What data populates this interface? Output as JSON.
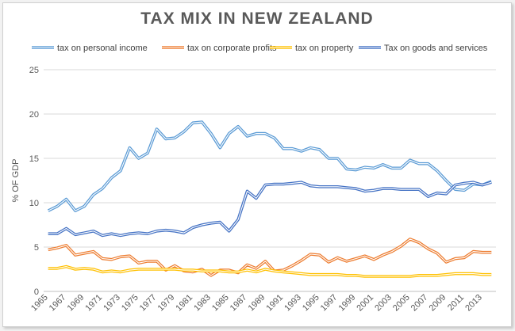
{
  "chart_data": {
    "type": "line",
    "title": "TAX MIX IN NEW ZEALAND",
    "xlabel": "",
    "ylabel": "% OF GDP",
    "xlim": [
      1965,
      2014
    ],
    "ylim": [
      0,
      25
    ],
    "y_ticks": [
      "0",
      "5",
      "10",
      "15",
      "20",
      "25"
    ],
    "x_tick_labels": [
      "1965",
      "1967",
      "1969",
      "1971",
      "1973",
      "1975",
      "1977",
      "1979",
      "1981",
      "1983",
      "1985",
      "1987",
      "1989",
      "1991",
      "1993",
      "1995",
      "1997",
      "1999",
      "2001",
      "2003",
      "2005",
      "2007",
      "2009",
      "2011",
      "2013"
    ],
    "grid": "horizontal",
    "legend_position": "top",
    "x": [
      1965,
      1966,
      1967,
      1968,
      1969,
      1970,
      1971,
      1972,
      1973,
      1974,
      1975,
      1976,
      1977,
      1978,
      1979,
      1980,
      1981,
      1982,
      1983,
      1984,
      1985,
      1986,
      1987,
      1988,
      1989,
      1990,
      1991,
      1992,
      1993,
      1994,
      1995,
      1996,
      1997,
      1998,
      1999,
      2000,
      2001,
      2002,
      2003,
      2004,
      2005,
      2006,
      2007,
      2008,
      2009,
      2010,
      2011,
      2012,
      2013,
      2014
    ],
    "series": [
      {
        "name": "tax on personal income",
        "color": "#5b9bd5",
        "values": [
          9.1,
          9.6,
          10.4,
          9.1,
          9.6,
          10.9,
          11.6,
          12.8,
          13.6,
          16.2,
          15.0,
          15.6,
          18.3,
          17.2,
          17.3,
          18.0,
          19.0,
          19.1,
          17.8,
          16.2,
          17.8,
          18.6,
          17.5,
          17.8,
          17.8,
          17.3,
          16.1,
          16.1,
          15.8,
          16.2,
          16.0,
          15.0,
          15.0,
          13.8,
          13.7,
          14.0,
          13.9,
          14.3,
          13.9,
          13.9,
          14.8,
          14.4,
          14.4,
          13.6,
          12.5,
          11.5,
          11.4,
          12.1,
          12.0,
          12.4
        ]
      },
      {
        "name": "tax on corporate profits",
        "color": "#ed7d31",
        "values": [
          4.7,
          4.9,
          5.2,
          4.1,
          4.3,
          4.5,
          3.7,
          3.6,
          3.9,
          4.0,
          3.2,
          3.4,
          3.4,
          2.4,
          2.9,
          2.3,
          2.2,
          2.5,
          1.8,
          2.4,
          2.4,
          2.1,
          3.0,
          2.6,
          3.4,
          2.3,
          2.4,
          2.9,
          3.5,
          4.2,
          4.1,
          3.3,
          3.8,
          3.4,
          3.7,
          4.0,
          3.6,
          4.1,
          4.5,
          5.1,
          5.9,
          5.5,
          4.8,
          4.3,
          3.3,
          3.7,
          3.8,
          4.5,
          4.4,
          4.4
        ]
      },
      {
        "name": "tax on property",
        "color": "#ffc000",
        "values": [
          2.6,
          2.6,
          2.8,
          2.5,
          2.6,
          2.5,
          2.2,
          2.3,
          2.2,
          2.4,
          2.5,
          2.5,
          2.5,
          2.5,
          2.5,
          2.4,
          2.4,
          2.3,
          2.3,
          2.3,
          2.2,
          2.2,
          2.4,
          2.2,
          2.5,
          2.3,
          2.2,
          2.1,
          2.0,
          1.9,
          1.9,
          1.9,
          1.9,
          1.8,
          1.8,
          1.7,
          1.7,
          1.7,
          1.7,
          1.7,
          1.7,
          1.8,
          1.8,
          1.8,
          1.9,
          2.0,
          2.0,
          2.0,
          1.9,
          1.9
        ]
      },
      {
        "name": "Tax on goods and services",
        "color": "#4472c4",
        "values": [
          6.5,
          6.5,
          7.1,
          6.4,
          6.6,
          6.8,
          6.3,
          6.5,
          6.3,
          6.5,
          6.6,
          6.5,
          6.8,
          6.9,
          6.8,
          6.6,
          7.2,
          7.5,
          7.7,
          7.8,
          6.8,
          8.1,
          11.3,
          10.5,
          12.0,
          12.1,
          12.1,
          12.2,
          12.3,
          11.9,
          11.8,
          11.8,
          11.8,
          11.7,
          11.6,
          11.3,
          11.4,
          11.6,
          11.6,
          11.5,
          11.5,
          11.5,
          10.7,
          11.1,
          11.0,
          12.0,
          12.2,
          12.3,
          12.0,
          12.3
        ]
      }
    ]
  }
}
